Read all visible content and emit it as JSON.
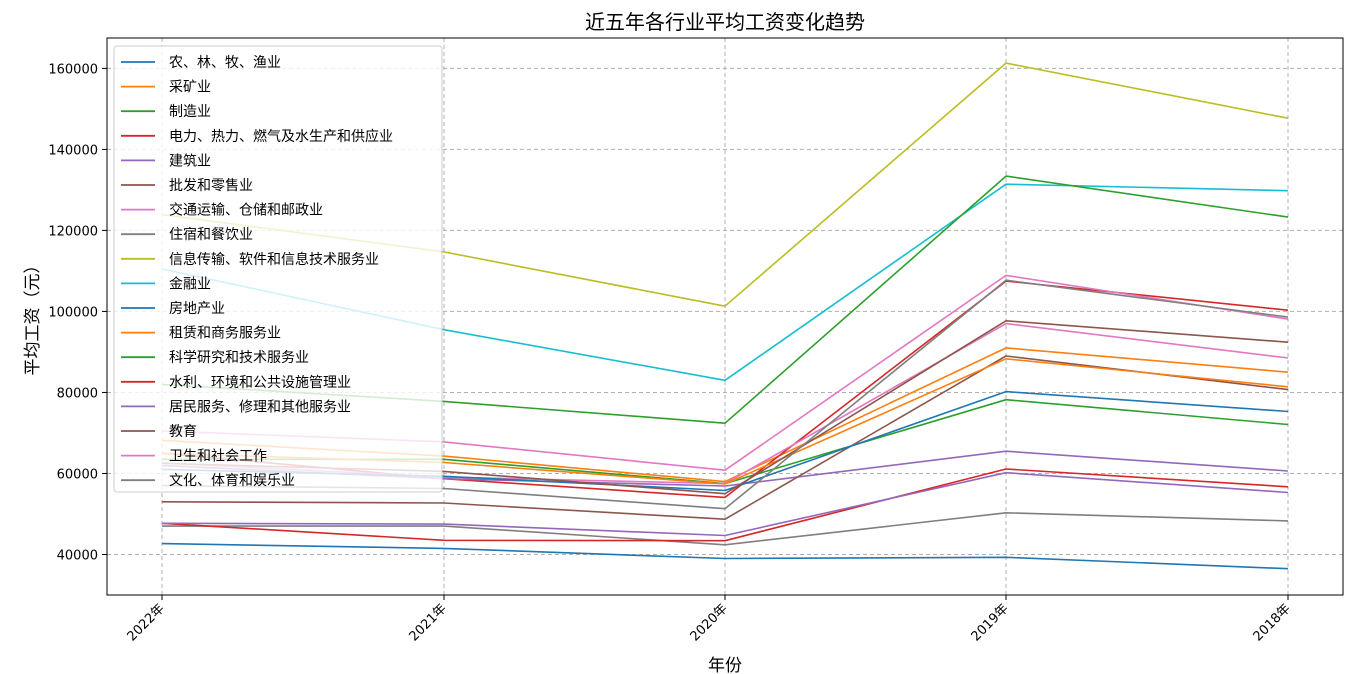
{
  "chart_data": {
    "type": "line",
    "title": "近五年各行业平均工资变化趋势",
    "xlabel": "年份",
    "ylabel": "平均工资（元）",
    "categories": [
      "2022年",
      "2021年",
      "2020年",
      "2019年",
      "2018年"
    ],
    "ylim": [
      30000,
      167500
    ],
    "yticks": [
      40000,
      60000,
      80000,
      100000,
      120000,
      140000,
      160000
    ],
    "grid": true,
    "legend_position": "top-left",
    "series": [
      {
        "name": "农、林、牧、渔业",
        "color": "#1f77b4",
        "values": [
          42700,
          41500,
          39000,
          39300,
          36500
        ]
      },
      {
        "name": "采矿业",
        "color": "#ff7f0e",
        "values": [
          68200,
          64300,
          58000,
          91000,
          85000
        ]
      },
      {
        "name": "制造业",
        "color": "#2ca02c",
        "values": [
          63500,
          63500,
          57500,
          78200,
          72100
        ]
      },
      {
        "name": "电力、热力、燃气及水生产和供应业",
        "color": "#d62728",
        "values": [
          65000,
          58700,
          54100,
          107500,
          100300
        ]
      },
      {
        "name": "建筑业",
        "color": "#9467bd",
        "values": [
          62000,
          58700,
          56900,
          65500,
          60600
        ]
      },
      {
        "name": "批发和零售业",
        "color": "#8c564b",
        "values": [
          53000,
          52700,
          48700,
          89000,
          80700
        ]
      },
      {
        "name": "交通运输、仓储和邮政业",
        "color": "#e377c2",
        "values": [
          62600,
          59100,
          57500,
          97000,
          88500
        ]
      },
      {
        "name": "住宿和餐饮业",
        "color": "#7f7f7f",
        "values": [
          47000,
          47000,
          42400,
          50300,
          48300
        ]
      },
      {
        "name": "信息传输、软件和信息技术服务业",
        "color": "#bcbd22",
        "values": [
          123900,
          114700,
          101300,
          161300,
          147700
        ]
      },
      {
        "name": "金融业",
        "color": "#17becf",
        "values": [
          110500,
          95500,
          83000,
          131400,
          129800
        ]
      },
      {
        "name": "房地产业",
        "color": "#1f77b4",
        "values": [
          61000,
          59300,
          55800,
          80200,
          75300
        ]
      },
      {
        "name": "租赁和商务服务业",
        "color": "#ff7f0e",
        "values": [
          65000,
          62700,
          57400,
          88300,
          81400
        ]
      },
      {
        "name": "科学研究和技术服务业",
        "color": "#2ca02c",
        "values": [
          82000,
          77800,
          72400,
          133400,
          123300
        ]
      },
      {
        "name": "水利、环境和公共设施管理业",
        "color": "#d62728",
        "values": [
          47700,
          43500,
          43400,
          61100,
          56700
        ]
      },
      {
        "name": "居民服务、修理和其他服务业",
        "color": "#9467bd",
        "values": [
          47700,
          47500,
          44700,
          60200,
          55300
        ]
      },
      {
        "name": "教育",
        "color": "#8c564b",
        "values": [
          62500,
          60500,
          55000,
          97700,
          92400
        ]
      },
      {
        "name": "卫生和社会工作",
        "color": "#e377c2",
        "values": [
          70500,
          67800,
          60800,
          108900,
          98100
        ]
      },
      {
        "name": "文化、体育和娱乐业",
        "color": "#7f7f7f",
        "values": [
          57000,
          56300,
          51300,
          107700,
          98600
        ]
      }
    ]
  }
}
